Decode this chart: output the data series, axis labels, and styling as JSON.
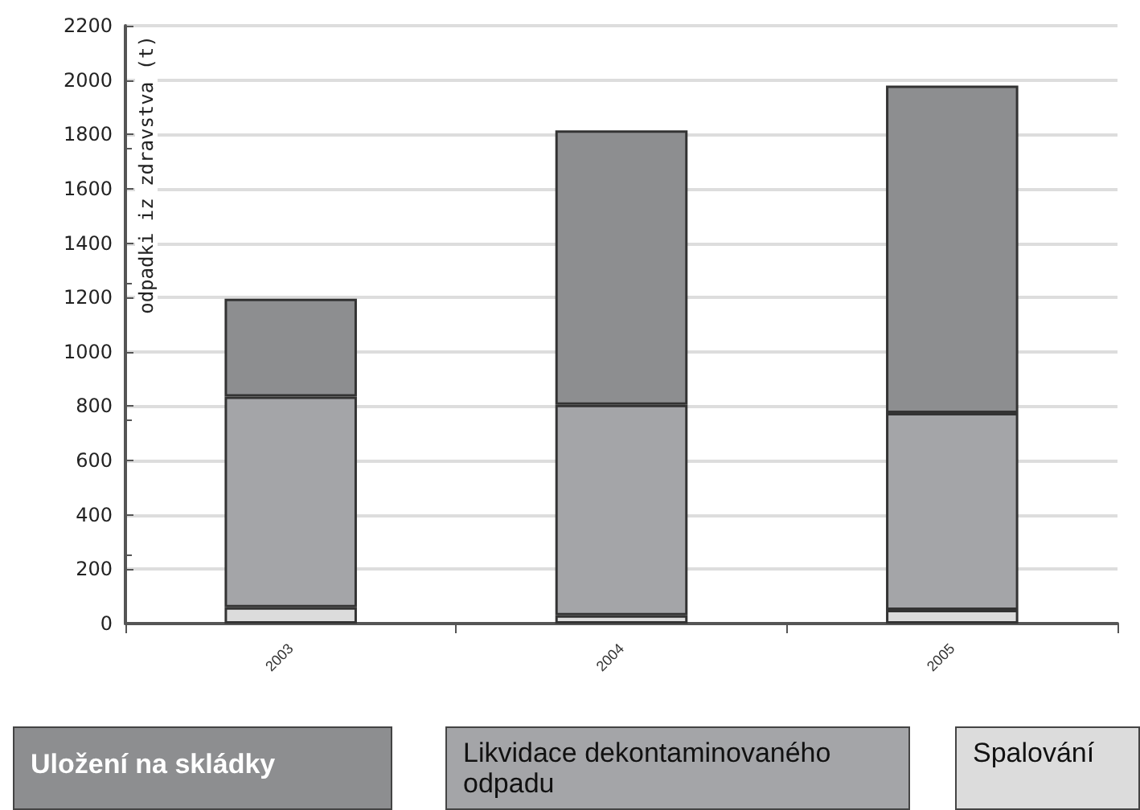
{
  "chart_data": {
    "type": "bar",
    "stacked": true,
    "ylabel": "odpadki iz zdravstva (t)",
    "categories": [
      "2003",
      "2004",
      "2005"
    ],
    "series": [
      {
        "name": "Spalování",
        "color": "#dcdcdc",
        "values": [
          60,
          30,
          50
        ]
      },
      {
        "name": "Likvidace dekontaminovaného odpadu",
        "color": "#a4a5a8",
        "values": [
          775,
          775,
          725
        ]
      },
      {
        "name": "Uložení na skládky",
        "color": "#8d8e90",
        "values": [
          360,
          1010,
          1205
        ]
      }
    ],
    "ylim": [
      0,
      2200
    ],
    "yticks": [
      0,
      200,
      400,
      600,
      800,
      1000,
      1200,
      1400,
      1600,
      1800,
      2000,
      2200
    ],
    "grid": "y",
    "legend": "bottom"
  }
}
